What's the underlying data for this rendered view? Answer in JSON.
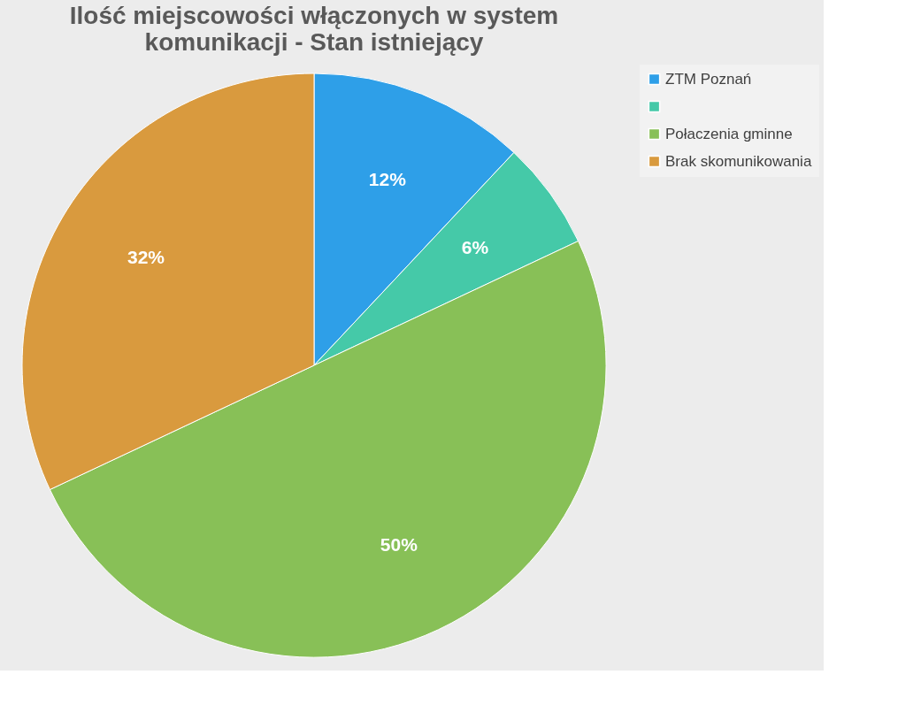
{
  "chart_data": {
    "type": "pie",
    "title": [
      "Ilość miejscowości włączonych w system",
      "komunikacji - Stan istniejący"
    ],
    "categories": [
      "ZTM Poznań",
      null,
      "Połaczenia gminne",
      "Brak skomunikowania"
    ],
    "values": [
      12,
      6,
      50,
      32
    ],
    "colors": [
      "#2e9fe8",
      "#45c9a8",
      "#88c057",
      "#d99a3e"
    ],
    "value_labels": [
      "12%",
      "6%",
      "50%",
      "32%"
    ],
    "legend": "right"
  }
}
